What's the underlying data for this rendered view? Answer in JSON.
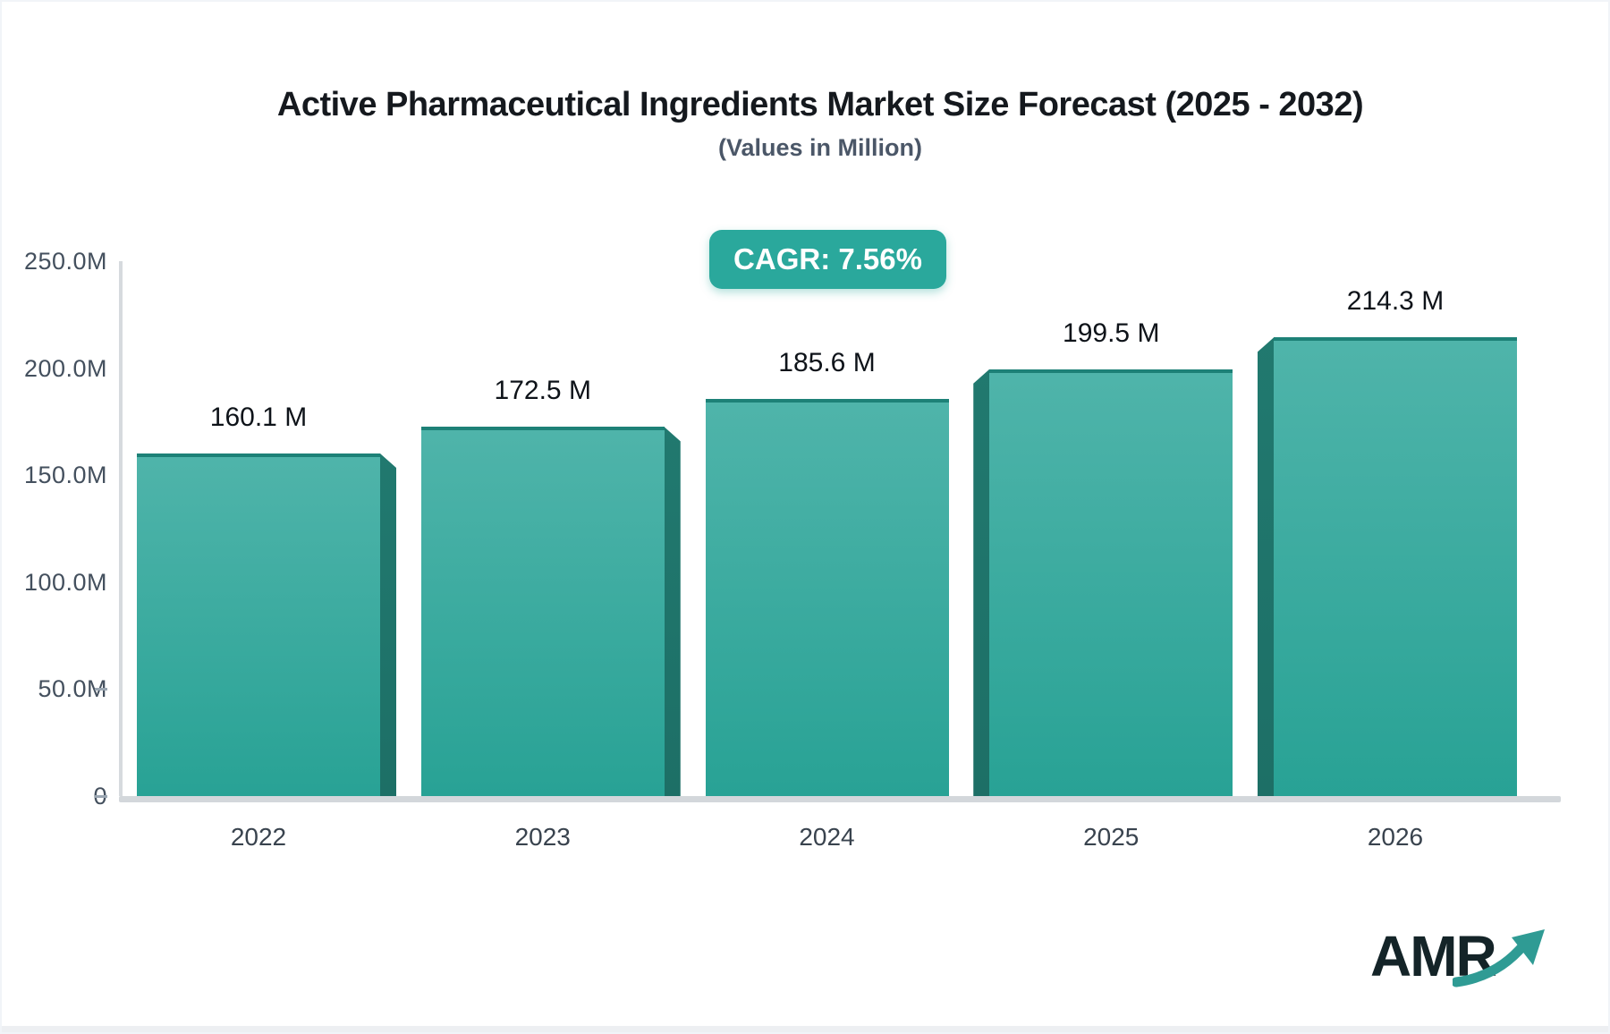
{
  "title": "Active Pharmaceutical Ingredients Market Size Forecast (2025 - 2032)",
  "subtitle": "(Values in Million)",
  "badge": {
    "label": "CAGR: 7.56%"
  },
  "chart_data": {
    "type": "bar",
    "title": "Active Pharmaceutical Ingredients Market Size Forecast (2025 - 2032)",
    "subtitle": "(Values in Million)",
    "cagr": "7.56%",
    "categories": [
      "2022",
      "2023",
      "2024",
      "2025",
      "2026"
    ],
    "values": [
      160.1,
      172.5,
      185.6,
      199.5,
      214.3
    ],
    "unit": "Million",
    "xlabel": "",
    "ylabel": "",
    "ylim": [
      0,
      250
    ],
    "grid": false,
    "legend": "none",
    "yticks": [
      {
        "label": "250.0M",
        "value": 250,
        "dash": false
      },
      {
        "label": "200.0M",
        "value": 200,
        "dash": false
      },
      {
        "label": "150.0M",
        "value": 150,
        "dash": false
      },
      {
        "label": "100.0M",
        "value": 100,
        "dash": false
      },
      {
        "label": "50.0M",
        "value": 50,
        "dash": true
      },
      {
        "label": "0",
        "value": 0,
        "dash": true
      }
    ],
    "bars": [
      {
        "year": "2022",
        "value": 160.1,
        "label": "160.1 M",
        "side": "right"
      },
      {
        "year": "2023",
        "value": 172.5,
        "label": "172.5 M",
        "side": "right"
      },
      {
        "year": "2024",
        "value": 185.6,
        "label": "185.6 M",
        "side": "none"
      },
      {
        "year": "2025",
        "value": 199.5,
        "label": "199.5 M",
        "side": "left"
      },
      {
        "year": "2026",
        "value": 214.3,
        "label": "214.3 M",
        "side": "left"
      }
    ]
  },
  "colors": {
    "bar_gradient_top": "#4fb4aa",
    "bar_gradient_bottom": "#28a295",
    "bar_side_face": "#21796f",
    "bar_top_edge": "#1d8177",
    "badge_bg": "#2aa89c",
    "axis_line": "#d6dade",
    "baseline": "#d3d7db",
    "tick_text": "#44505e",
    "value_text": "#0e1319",
    "logo_text": "#142428",
    "logo_arrow": "#2f9b94"
  },
  "logo": {
    "text": "AMR"
  }
}
